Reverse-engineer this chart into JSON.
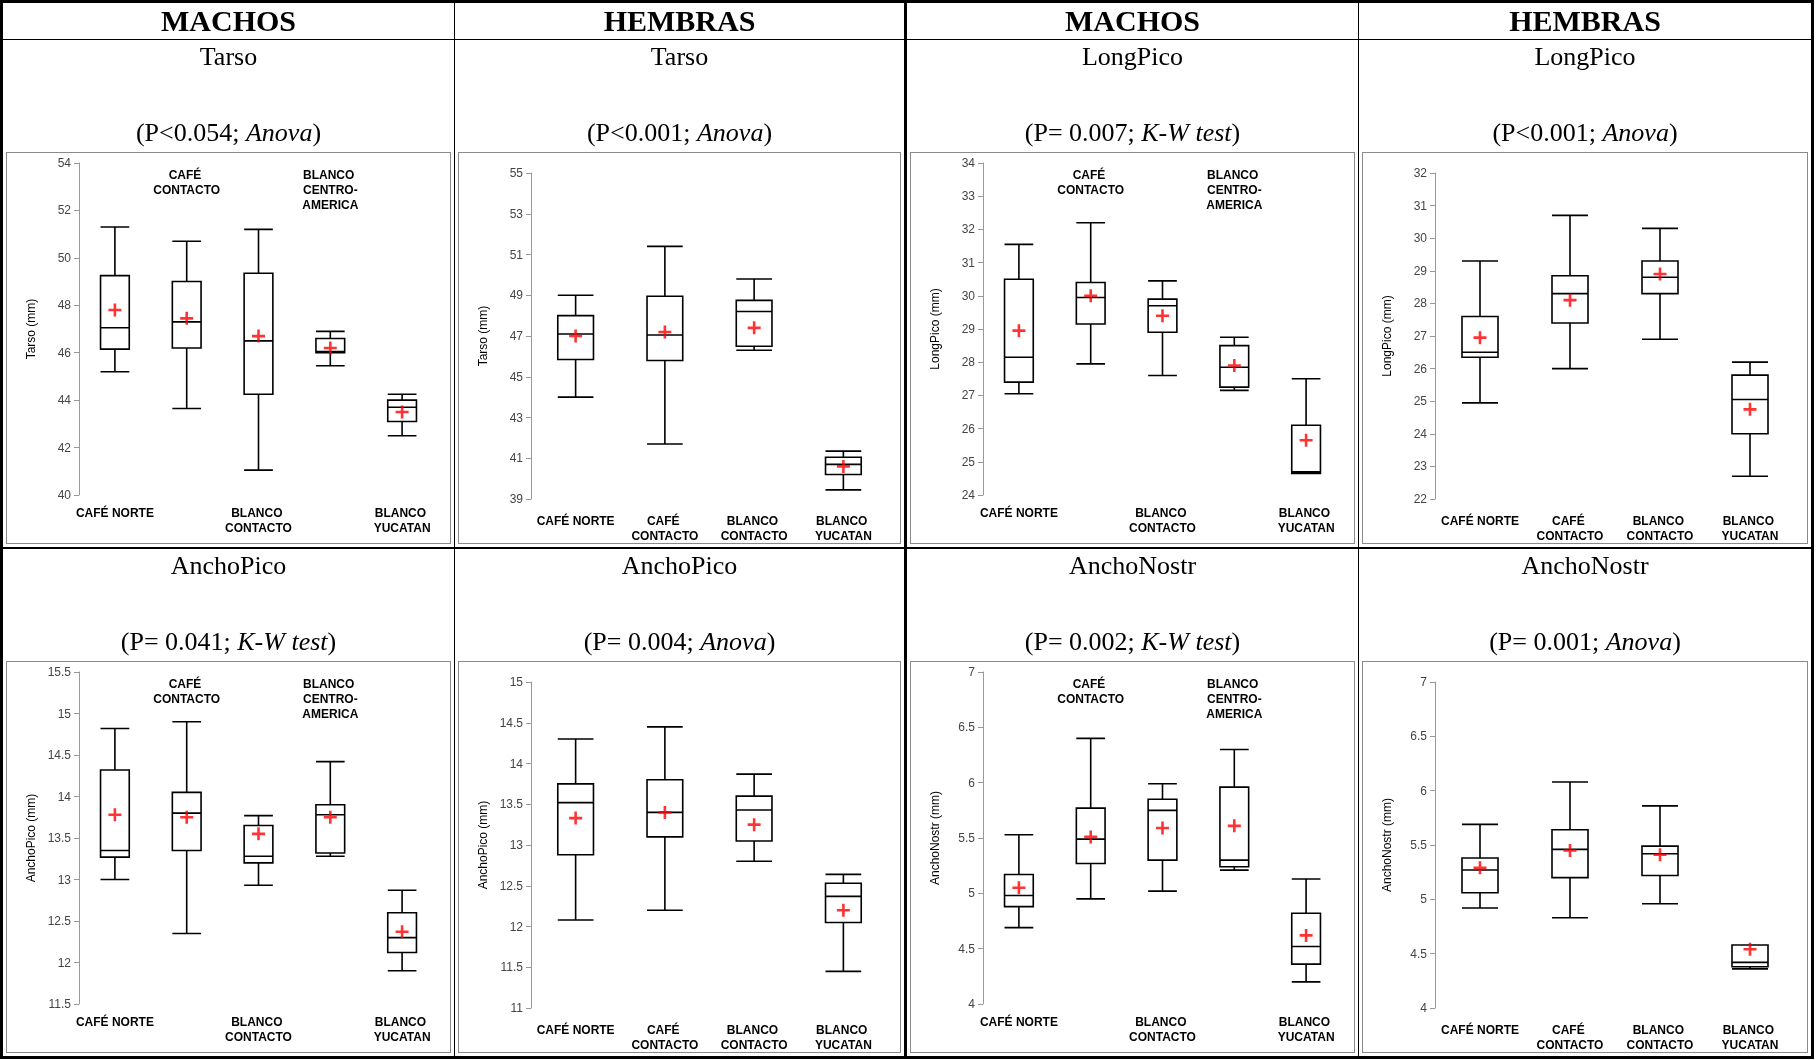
{
  "chart_data": [
    {
      "type": "box",
      "annotations": [
        "MACHOS"
      ],
      "title": "Tarso",
      "subtitle": "(P<0.054; Anova)",
      "ylabel": "Tarso (mm)",
      "categories": [
        "CAFÉ NORTE",
        "CAFÉ CONTACTO",
        "BLANCO CONTACTO",
        "BLANCO CENTRO-AMERICA",
        "BLANCO YUCATAN"
      ],
      "ylim": [
        40,
        54
      ],
      "yticks": [
        40,
        42,
        44,
        46,
        48,
        50,
        52,
        54
      ],
      "marker": "cross",
      "series": [
        {
          "type": "box",
          "color": "#000000",
          "boxes": [
            {
              "low": 45.2,
              "q1": 46.15,
              "median": 47.05,
              "q3": 49.25,
              "high": 51.3
            },
            {
              "low": 43.65,
              "q1": 46.2,
              "median": 47.3,
              "q3": 49.0,
              "high": 50.7
            },
            {
              "low": 41.05,
              "q1": 44.25,
              "median": 46.5,
              "q3": 49.35,
              "high": 51.2
            },
            {
              "low": 45.45,
              "q1": 46.0,
              "median": 46.05,
              "q3": 46.6,
              "high": 46.9
            },
            {
              "low": 42.5,
              "q1": 43.1,
              "median": 43.7,
              "q3": 44.0,
              "high": 44.25
            }
          ]
        },
        {
          "type": "scatter",
          "color": "#ff0000",
          "x": [
            "CAFÉ NORTE",
            "CAFÉ CONTACTO",
            "BLANCO CONTACTO",
            "BLANCO CENTRO-AMERICA",
            "BLANCO YUCATAN"
          ],
          "values": [
            47.8,
            47.45,
            46.7,
            46.2,
            43.5
          ]
        }
      ]
    },
    {
      "type": "box",
      "annotations": [
        "HEMBRAS"
      ],
      "title": "Tarso",
      "subtitle": "(P<0.001; Anova)",
      "ylabel": "Tarso (mm)",
      "categories": [
        "CAFÉ NORTE",
        "CAFÉ CONTACTO",
        "BLANCO CONTACTO",
        "BLANCO YUCATAN"
      ],
      "ylim": [
        39,
        55
      ],
      "yticks": [
        39,
        41,
        43,
        45,
        47,
        49,
        51,
        53,
        55
      ],
      "marker": "cross",
      "series": [
        {
          "type": "box",
          "color": "#000000",
          "boxes": [
            {
              "low": 44.0,
              "q1": 45.85,
              "median": 47.1,
              "q3": 48.0,
              "high": 49.0
            },
            {
              "low": 41.7,
              "q1": 45.8,
              "median": 47.05,
              "q3": 48.95,
              "high": 51.4
            },
            {
              "low": 46.3,
              "q1": 46.5,
              "median": 48.2,
              "q3": 48.75,
              "high": 49.8
            },
            {
              "low": 39.45,
              "q1": 40.2,
              "median": 40.7,
              "q3": 41.05,
              "high": 41.35
            }
          ]
        },
        {
          "type": "scatter",
          "color": "#ff0000",
          "x": [
            "CAFÉ NORTE",
            "CAFÉ CONTACTO",
            "BLANCO CONTACTO",
            "BLANCO YUCATAN"
          ],
          "values": [
            47.0,
            47.2,
            47.4,
            40.6
          ]
        }
      ]
    },
    {
      "type": "box",
      "annotations": [
        "MACHOS"
      ],
      "title": "LongPico",
      "subtitle": "(P= 0.007; K-W test)",
      "ylabel": "LongPico (mm)",
      "categories": [
        "CAFÉ NORTE",
        "CAFÉ CONTACTO",
        "BLANCO CONTACTO",
        "BLANCO CENTRO-AMERICA",
        "BLANCO YUCATAN"
      ],
      "ylim": [
        24,
        34
      ],
      "yticks": [
        24,
        25,
        26,
        27,
        28,
        29,
        30,
        31,
        32,
        33,
        34
      ],
      "marker": "cross",
      "series": [
        {
          "type": "box",
          "color": "#000000",
          "boxes": [
            {
              "low": 27.05,
              "q1": 27.4,
              "median": 28.15,
              "q3": 30.5,
              "high": 31.55
            },
            {
              "low": 27.95,
              "q1": 29.15,
              "median": 29.95,
              "q3": 30.4,
              "high": 32.2
            },
            {
              "low": 27.6,
              "q1": 28.9,
              "median": 29.7,
              "q3": 29.9,
              "high": 30.45
            },
            {
              "low": 27.15,
              "q1": 27.25,
              "median": 27.85,
              "q3": 28.5,
              "high": 28.75
            },
            {
              "low": 24.65,
              "q1": 24.65,
              "median": 24.7,
              "q3": 26.1,
              "high": 27.5
            }
          ]
        },
        {
          "type": "scatter",
          "color": "#ff0000",
          "x": [
            "CAFÉ NORTE",
            "CAFÉ CONTACTO",
            "BLANCO CONTACTO",
            "BLANCO CENTRO-AMERICA",
            "BLANCO YUCATAN"
          ],
          "values": [
            28.95,
            30.0,
            29.4,
            27.9,
            25.65
          ]
        }
      ]
    },
    {
      "type": "box",
      "annotations": [
        "HEMBRAS"
      ],
      "title": "LongPico",
      "subtitle": "(P<0.001; Anova)",
      "ylabel": "LongPico (mm)",
      "categories": [
        "CAFÉ NORTE",
        "CAFÉ CONTACTO",
        "BLANCO CONTACTO",
        "BLANCO YUCATAN"
      ],
      "ylim": [
        22,
        32
      ],
      "yticks": [
        22,
        23,
        24,
        25,
        26,
        27,
        28,
        29,
        30,
        31,
        32
      ],
      "marker": "cross",
      "series": [
        {
          "type": "box",
          "color": "#000000",
          "boxes": [
            {
              "low": 24.95,
              "q1": 26.35,
              "median": 26.5,
              "q3": 27.6,
              "high": 29.3
            },
            {
              "low": 26.0,
              "q1": 27.4,
              "median": 28.3,
              "q3": 28.85,
              "high": 30.7
            },
            {
              "low": 26.9,
              "q1": 28.3,
              "median": 28.8,
              "q3": 29.3,
              "high": 30.3
            },
            {
              "low": 22.7,
              "q1": 24.0,
              "median": 25.05,
              "q3": 25.8,
              "high": 26.2
            }
          ]
        },
        {
          "type": "scatter",
          "color": "#ff0000",
          "x": [
            "CAFÉ NORTE",
            "CAFÉ CONTACTO",
            "BLANCO CONTACTO",
            "BLANCO YUCATAN"
          ],
          "values": [
            26.95,
            28.1,
            28.9,
            24.75
          ]
        }
      ]
    },
    {
      "type": "box",
      "title": "AnchoPico",
      "subtitle": "(P= 0.041; K-W test)",
      "ylabel": "AnchoPico (mm)",
      "categories": [
        "CAFÉ NORTE",
        "CAFÉ CONTACTO",
        "BLANCO CONTACTO",
        "BLANCO CENTRO-AMERICA",
        "BLANCO YUCATAN"
      ],
      "ylim": [
        11.5,
        15.5
      ],
      "yticks": [
        11.5,
        12,
        12.5,
        13,
        13.5,
        14,
        14.5,
        15,
        15.5
      ],
      "marker": "cross",
      "series": [
        {
          "type": "box",
          "color": "#000000",
          "boxes": [
            {
              "low": 13.0,
              "q1": 13.27,
              "median": 13.35,
              "q3": 14.32,
              "high": 14.82
            },
            {
              "low": 12.35,
              "q1": 13.35,
              "median": 13.8,
              "q3": 14.05,
              "high": 14.9
            },
            {
              "low": 12.93,
              "q1": 13.2,
              "median": 13.28,
              "q3": 13.65,
              "high": 13.77
            },
            {
              "low": 13.28,
              "q1": 13.32,
              "median": 13.78,
              "q3": 13.9,
              "high": 14.42
            },
            {
              "low": 11.9,
              "q1": 12.12,
              "median": 12.3,
              "q3": 12.6,
              "high": 12.87
            }
          ]
        },
        {
          "type": "scatter",
          "color": "#ff0000",
          "x": [
            "CAFÉ NORTE",
            "CAFÉ CONTACTO",
            "BLANCO CONTACTO",
            "BLANCO CENTRO-AMERICA",
            "BLANCO YUCATAN"
          ],
          "values": [
            13.78,
            13.75,
            13.55,
            13.75,
            12.37
          ]
        }
      ]
    },
    {
      "type": "box",
      "title": "AnchoPico",
      "subtitle": "(P= 0.004; Anova)",
      "ylabel": "AnchoPico (mm)",
      "categories": [
        "CAFÉ NORTE",
        "CAFÉ CONTACTO",
        "BLANCO CONTACTO",
        "BLANCO YUCATAN"
      ],
      "ylim": [
        11,
        15
      ],
      "yticks": [
        11,
        11.5,
        12,
        12.5,
        13,
        13.5,
        14,
        14.5,
        15
      ],
      "marker": "cross",
      "series": [
        {
          "type": "box",
          "color": "#000000",
          "boxes": [
            {
              "low": 12.08,
              "q1": 12.88,
              "median": 13.52,
              "q3": 13.75,
              "high": 14.3
            },
            {
              "low": 12.2,
              "q1": 13.1,
              "median": 13.4,
              "q3": 13.8,
              "high": 14.45
            },
            {
              "low": 12.8,
              "q1": 13.05,
              "median": 13.43,
              "q3": 13.6,
              "high": 13.87
            },
            {
              "low": 11.45,
              "q1": 12.05,
              "median": 12.37,
              "q3": 12.53,
              "high": 12.64
            }
          ]
        },
        {
          "type": "scatter",
          "color": "#ff0000",
          "x": [
            "CAFÉ NORTE",
            "CAFÉ CONTACTO",
            "BLANCO CONTACTO",
            "BLANCO YUCATAN"
          ],
          "values": [
            13.33,
            13.4,
            13.25,
            12.2
          ]
        }
      ]
    },
    {
      "type": "box",
      "title": "AnchoNostr",
      "subtitle": "(P= 0.002; K-W test)",
      "ylabel": "AnchoNostr (mm)",
      "categories": [
        "CAFÉ NORTE",
        "CAFÉ CONTACTO",
        "BLANCO CONTACTO",
        "BLANCO CENTRO-AMERICA",
        "BLANCO YUCATAN"
      ],
      "ylim": [
        4,
        7
      ],
      "yticks": [
        4,
        4.5,
        5,
        5.5,
        6,
        6.5,
        7
      ],
      "marker": "cross",
      "series": [
        {
          "type": "box",
          "color": "#000000",
          "boxes": [
            {
              "low": 4.69,
              "q1": 4.88,
              "median": 4.98,
              "q3": 5.17,
              "high": 5.53
            },
            {
              "low": 4.95,
              "q1": 5.27,
              "median": 5.49,
              "q3": 5.77,
              "high": 6.4
            },
            {
              "low": 5.02,
              "q1": 5.3,
              "median": 5.75,
              "q3": 5.85,
              "high": 5.99
            },
            {
              "low": 5.21,
              "q1": 5.24,
              "median": 5.3,
              "q3": 5.96,
              "high": 6.3
            },
            {
              "low": 4.2,
              "q1": 4.36,
              "median": 4.52,
              "q3": 4.82,
              "high": 5.13
            }
          ]
        },
        {
          "type": "scatter",
          "color": "#ff0000",
          "x": [
            "CAFÉ NORTE",
            "CAFÉ CONTACTO",
            "BLANCO CONTACTO",
            "BLANCO CENTRO-AMERICA",
            "BLANCO YUCATAN"
          ],
          "values": [
            5.05,
            5.51,
            5.59,
            5.61,
            4.62
          ]
        }
      ]
    },
    {
      "type": "box",
      "title": "AnchoNostr",
      "subtitle": "(P= 0.001; Anova)",
      "ylabel": "AnchoNostr (mm)",
      "categories": [
        "CAFÉ NORTE",
        "CAFÉ CONTACTO",
        "BLANCO CONTACTO",
        "BLANCO YUCATAN"
      ],
      "ylim": [
        4,
        7
      ],
      "yticks": [
        4,
        4.5,
        5,
        5.5,
        6,
        6.5,
        7
      ],
      "marker": "cross",
      "series": [
        {
          "type": "box",
          "color": "#000000",
          "boxes": [
            {
              "low": 4.92,
              "q1": 5.06,
              "median": 5.27,
              "q3": 5.38,
              "high": 5.69
            },
            {
              "low": 4.83,
              "q1": 5.2,
              "median": 5.46,
              "q3": 5.64,
              "high": 6.08
            },
            {
              "low": 4.96,
              "q1": 5.22,
              "median": 5.42,
              "q3": 5.49,
              "high": 5.86
            },
            {
              "low": 4.36,
              "q1": 4.38,
              "median": 4.42,
              "q3": 4.58,
              "high": 4.58
            }
          ]
        },
        {
          "type": "scatter",
          "color": "#ff0000",
          "x": [
            "CAFÉ NORTE",
            "CAFÉ CONTACTO",
            "BLANCO CONTACTO",
            "BLANCO YUCATAN"
          ],
          "values": [
            5.29,
            5.45,
            5.41,
            4.54
          ]
        }
      ]
    }
  ]
}
